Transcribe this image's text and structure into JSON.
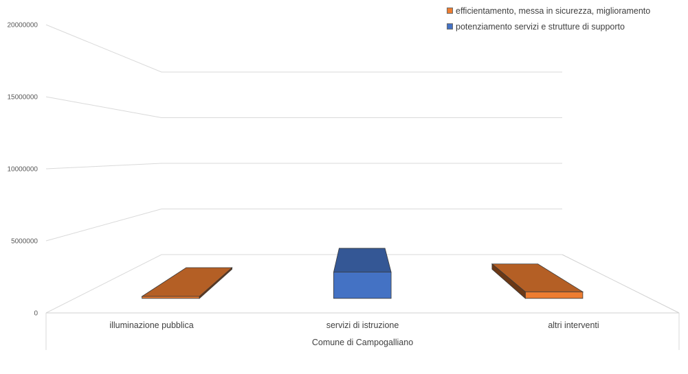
{
  "chart_data": {
    "type": "bar",
    "title": "",
    "xlabel": "Comune di Campogalliano",
    "ylabel": "",
    "ylim": [
      0,
      20000000
    ],
    "yticks": [
      "20000000",
      "15000000",
      "10000000",
      "5000000",
      "0"
    ],
    "categories": [
      "illuminazione pubblica",
      "servizi di istruzione",
      "altri interventi"
    ],
    "series": [
      {
        "name": "efficientamento, messa in sicurezza, miglioramento",
        "values": [
          150000,
          0,
          500000
        ],
        "color": "#ED7D31"
      },
      {
        "name": "potenziamento servizi e strutture di supporto",
        "values": [
          0,
          2000000,
          0
        ],
        "color": "#4472C4"
      }
    ],
    "grid": true,
    "legend_position": "top-right",
    "projection": "3d-perspective"
  }
}
